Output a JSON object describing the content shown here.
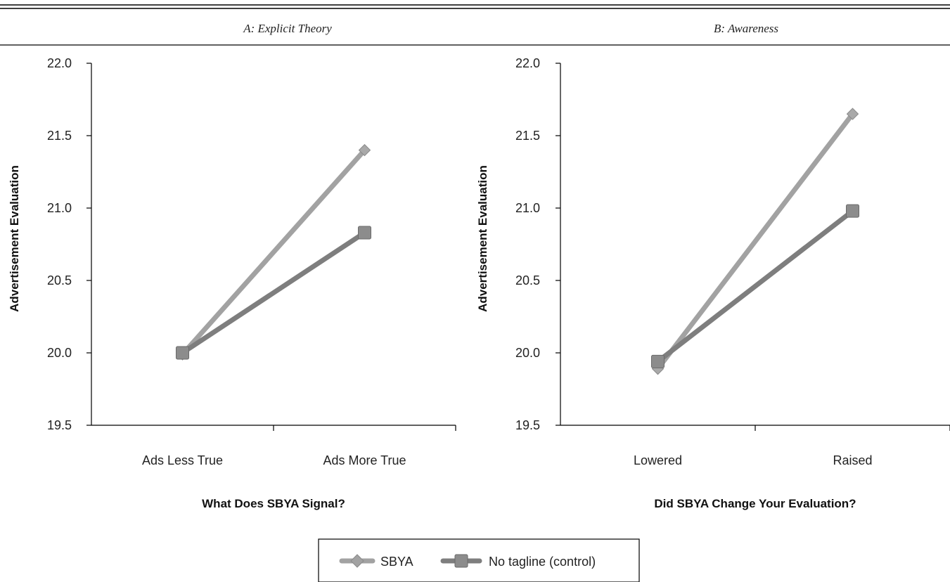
{
  "chart_data": [
    {
      "type": "line",
      "title": "A: Explicit Theory",
      "xlabel": "What Does SBYA Signal?",
      "ylabel": "Advertisement Evaluation",
      "categories": [
        "Ads Less True",
        "Ads More True"
      ],
      "ylim": [
        19.5,
        22.0
      ],
      "yticks": [
        "22.0",
        "21.5",
        "21.0",
        "20.5",
        "20.0",
        "19.5"
      ],
      "series": [
        {
          "name": "SBYA",
          "values": [
            19.99,
            21.4
          ],
          "color": "#a2a2a2",
          "marker": "diamond"
        },
        {
          "name": "No tagline (control)",
          "values": [
            20.0,
            20.83
          ],
          "color": "#7e7e7e",
          "marker": "square"
        }
      ],
      "grid": false
    },
    {
      "type": "line",
      "title": "B: Awareness",
      "xlabel": "Did SBYA Change Your Evaluation?",
      "ylabel": "Advertisement Evaluation",
      "categories": [
        "Lowered",
        "Raised"
      ],
      "ylim": [
        19.5,
        22.0
      ],
      "yticks": [
        "22.0",
        "21.5",
        "21.0",
        "20.5",
        "20.0",
        "19.5"
      ],
      "series": [
        {
          "name": "SBYA",
          "values": [
            19.89,
            21.65
          ],
          "color": "#a2a2a2",
          "marker": "diamond"
        },
        {
          "name": "No tagline (control)",
          "values": [
            19.94,
            20.98
          ],
          "color": "#7e7e7e",
          "marker": "square"
        }
      ],
      "grid": false
    }
  ],
  "legend": {
    "placement": "bottom-center",
    "entries": [
      {
        "label": "SBYA",
        "color": "#a2a2a2",
        "marker": "diamond"
      },
      {
        "label": "No tagline (control)",
        "color": "#7e7e7e",
        "marker": "square"
      }
    ]
  }
}
